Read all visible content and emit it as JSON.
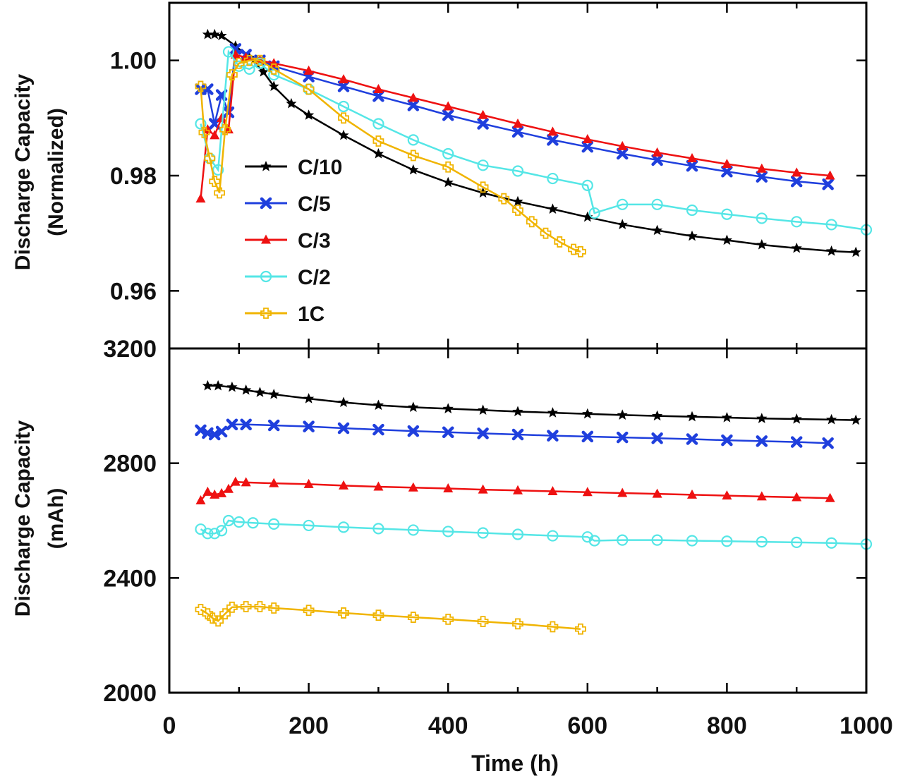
{
  "chart_data": [
    {
      "type": "line",
      "panel": "top",
      "title": "",
      "xlabel": "",
      "ylabel": [
        "Discharge Capacity",
        "(Normalized)"
      ],
      "xlim": [
        0,
        1000
      ],
      "ylim": [
        0.95,
        1.01
      ],
      "yticks": [
        {
          "value": 0.96,
          "label": "0.96"
        },
        {
          "value": 0.98,
          "label": "0.98"
        },
        {
          "value": 1.0,
          "label": "1.00"
        }
      ],
      "grid": false,
      "legend": "center-left",
      "series": [
        {
          "name": "C/10",
          "color": "#000000",
          "marker": "star",
          "x": [
            55,
            65,
            75,
            95,
            115,
            135,
            150,
            175,
            200,
            250,
            300,
            350,
            400,
            450,
            500,
            550,
            600,
            650,
            700,
            750,
            800,
            850,
            900,
            950,
            985
          ],
          "y": [
            1.0045,
            1.0045,
            1.0043,
            1.0025,
            1.0005,
            0.998,
            0.9955,
            0.9925,
            0.9905,
            0.987,
            0.9838,
            0.981,
            0.9788,
            0.977,
            0.9755,
            0.9742,
            0.9728,
            0.9715,
            0.9705,
            0.9695,
            0.9688,
            0.968,
            0.9674,
            0.9669,
            0.9667
          ]
        },
        {
          "name": "C/5",
          "color": "#1f3fdd",
          "marker": "x",
          "x": [
            45,
            55,
            65,
            75,
            85,
            95,
            110,
            130,
            150,
            200,
            250,
            300,
            350,
            400,
            450,
            500,
            550,
            600,
            650,
            700,
            750,
            800,
            850,
            900,
            945
          ],
          "y": [
            0.995,
            0.995,
            0.989,
            0.994,
            0.991,
            1.002,
            1.001,
            1.0,
            0.999,
            0.9972,
            0.9955,
            0.9938,
            0.9922,
            0.9905,
            0.989,
            0.9876,
            0.9862,
            0.985,
            0.9838,
            0.9827,
            0.9817,
            0.9807,
            0.9798,
            0.979,
            0.9785
          ]
        },
        {
          "name": "C/3",
          "color": "#ee1111",
          "marker": "triangle",
          "x": [
            45,
            55,
            65,
            75,
            85,
            95,
            110,
            130,
            150,
            200,
            250,
            300,
            350,
            400,
            450,
            500,
            550,
            600,
            650,
            700,
            750,
            800,
            850,
            900,
            948
          ],
          "y": [
            0.976,
            0.988,
            0.987,
            0.99,
            0.988,
            1.001,
            1.0005,
            1.0,
            0.9995,
            0.9982,
            0.9967,
            0.995,
            0.9935,
            0.992,
            0.9905,
            0.989,
            0.9876,
            0.9863,
            0.9851,
            0.984,
            0.983,
            0.982,
            0.9812,
            0.9805,
            0.98
          ]
        },
        {
          "name": "C/2",
          "color": "#55e6e6",
          "marker": "circle",
          "x": [
            45,
            58,
            70,
            85,
            100,
            115,
            130,
            150,
            200,
            250,
            300,
            350,
            400,
            450,
            500,
            550,
            600,
            610,
            650,
            700,
            750,
            800,
            850,
            900,
            950,
            1000
          ],
          "y": [
            0.989,
            0.983,
            0.981,
            1.0015,
            0.999,
            0.9985,
            0.9995,
            0.9975,
            0.995,
            0.992,
            0.989,
            0.9862,
            0.9838,
            0.9818,
            0.9808,
            0.9795,
            0.9783,
            0.9735,
            0.975,
            0.975,
            0.974,
            0.9733,
            0.9726,
            0.972,
            0.9715,
            0.9706
          ]
        },
        {
          "name": "1C",
          "color": "#f0b400",
          "marker": "plus",
          "x": [
            45,
            50,
            58,
            65,
            72,
            80,
            90,
            100,
            115,
            130,
            150,
            200,
            250,
            300,
            350,
            400,
            450,
            480,
            500,
            520,
            540,
            560,
            580,
            590
          ],
          "y": [
            0.9955,
            0.9875,
            0.983,
            0.979,
            0.977,
            0.988,
            0.9975,
            0.9995,
            1.0,
            1.0,
            0.9985,
            0.995,
            0.99,
            0.986,
            0.9835,
            0.9815,
            0.978,
            0.976,
            0.974,
            0.972,
            0.97,
            0.9685,
            0.9672,
            0.9668
          ]
        }
      ]
    },
    {
      "type": "line",
      "panel": "bottom",
      "title": "",
      "xlabel": "Time (h)",
      "ylabel": [
        "Discharge Capacity",
        "(mAh)"
      ],
      "xlim": [
        0,
        1000
      ],
      "ylim": [
        2000,
        3200
      ],
      "xticks": [
        0,
        200,
        400,
        600,
        800,
        1000
      ],
      "yticks": [
        {
          "value": 2000,
          "label": "2000"
        },
        {
          "value": 2400,
          "label": "2400"
        },
        {
          "value": 2800,
          "label": "2800"
        },
        {
          "value": 3200,
          "label": "3200"
        }
      ],
      "grid": false,
      "series": [
        {
          "name": "C/10",
          "color": "#000000",
          "marker": "star",
          "x": [
            55,
            70,
            90,
            110,
            130,
            150,
            200,
            250,
            300,
            350,
            400,
            450,
            500,
            550,
            600,
            650,
            700,
            750,
            800,
            850,
            900,
            950,
            985
          ],
          "y": [
            3070,
            3070,
            3065,
            3055,
            3047,
            3040,
            3025,
            3012,
            3002,
            2995,
            2990,
            2985,
            2980,
            2976,
            2972,
            2968,
            2965,
            2962,
            2959,
            2956,
            2954,
            2952,
            2950
          ]
        },
        {
          "name": "C/5",
          "color": "#1f3fdd",
          "marker": "x",
          "x": [
            45,
            55,
            65,
            75,
            90,
            110,
            150,
            200,
            250,
            300,
            350,
            400,
            450,
            500,
            550,
            600,
            650,
            700,
            750,
            800,
            850,
            900,
            945
          ],
          "y": [
            2915,
            2905,
            2900,
            2910,
            2935,
            2935,
            2932,
            2928,
            2922,
            2917,
            2912,
            2908,
            2904,
            2900,
            2896,
            2893,
            2890,
            2887,
            2884,
            2880,
            2877,
            2874,
            2870
          ]
        },
        {
          "name": "C/3",
          "color": "#ee1111",
          "marker": "triangle",
          "x": [
            45,
            55,
            65,
            75,
            85,
            95,
            110,
            150,
            200,
            250,
            300,
            350,
            400,
            450,
            500,
            550,
            600,
            650,
            700,
            750,
            800,
            850,
            900,
            948
          ],
          "y": [
            2670,
            2700,
            2690,
            2695,
            2710,
            2735,
            2733,
            2730,
            2727,
            2722,
            2718,
            2715,
            2712,
            2708,
            2705,
            2702,
            2699,
            2696,
            2693,
            2690,
            2687,
            2684,
            2681,
            2678
          ]
        },
        {
          "name": "C/2",
          "color": "#55e6e6",
          "marker": "circle",
          "x": [
            45,
            55,
            65,
            75,
            85,
            100,
            120,
            150,
            200,
            250,
            300,
            350,
            400,
            450,
            500,
            550,
            600,
            610,
            650,
            700,
            750,
            800,
            850,
            900,
            950,
            1000
          ],
          "y": [
            2570,
            2555,
            2555,
            2565,
            2600,
            2595,
            2592,
            2588,
            2583,
            2577,
            2572,
            2567,
            2562,
            2557,
            2552,
            2547,
            2543,
            2530,
            2532,
            2532,
            2530,
            2528,
            2526,
            2524,
            2522,
            2518
          ]
        },
        {
          "name": "1C",
          "color": "#f0b400",
          "marker": "plus",
          "x": [
            45,
            55,
            62,
            70,
            80,
            90,
            110,
            130,
            150,
            200,
            250,
            300,
            350,
            400,
            450,
            500,
            550,
            590
          ],
          "y": [
            2290,
            2275,
            2260,
            2250,
            2275,
            2298,
            2300,
            2300,
            2295,
            2287,
            2278,
            2270,
            2263,
            2256,
            2248,
            2240,
            2230,
            2222
          ]
        }
      ]
    }
  ]
}
